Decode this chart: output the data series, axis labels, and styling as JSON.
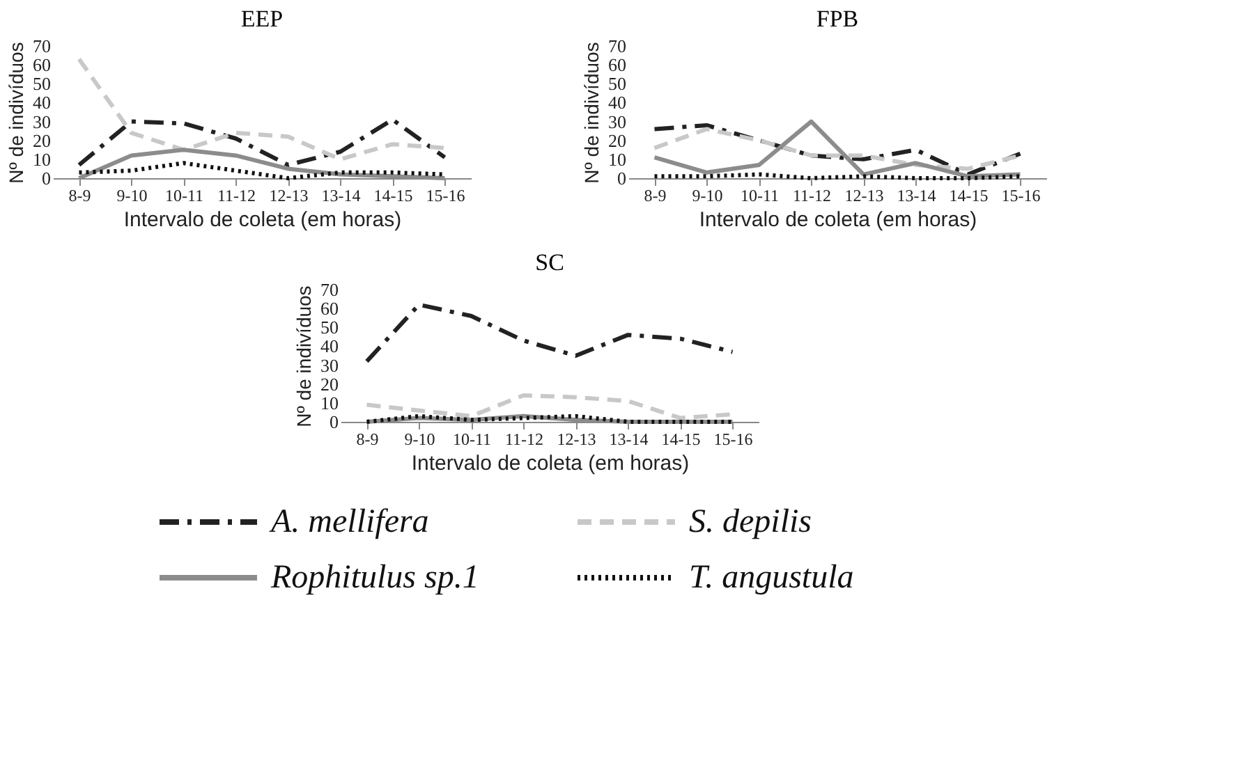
{
  "chart_data": [
    {
      "type": "line",
      "title": "EEP",
      "xlabel": "Intervalo  de coleta (em horas)",
      "ylabel": "Nº de indivíduos",
      "categories": [
        "8-9",
        "9-10",
        "10-11",
        "11-12",
        "12-13",
        "13-14",
        "14-15",
        "15-16"
      ],
      "ylim": [
        0,
        70
      ],
      "yticks": [
        0,
        10,
        20,
        30,
        40,
        50,
        60,
        70
      ],
      "grid": false,
      "series": [
        {
          "color": "#222222",
          "line_style": "dashdot",
          "values": [
            7,
            30,
            29,
            21,
            7,
            14,
            31,
            11
          ]
        },
        {
          "color": "#c8c8c8",
          "line_style": "dashed",
          "values": [
            63,
            24,
            15,
            24,
            22,
            10,
            18,
            16
          ]
        },
        {
          "color": "#8c8c8c",
          "line_style": "solid",
          "values": [
            0,
            12,
            15,
            12,
            5,
            2,
            1,
            0
          ]
        },
        {
          "color": "#111111",
          "line_style": "dotted",
          "values": [
            3,
            4,
            8,
            4,
            0,
            3,
            3,
            2
          ]
        }
      ]
    },
    {
      "type": "line",
      "title": "FPB",
      "xlabel": "Intervalo  de coleta (em horas)",
      "ylabel": "Nº de indivíduos",
      "categories": [
        "8-9",
        "9-10",
        "10-11",
        "11-12",
        "12-13",
        "13-14",
        "14-15",
        "15-16"
      ],
      "ylim": [
        0,
        70
      ],
      "yticks": [
        0,
        10,
        20,
        30,
        40,
        50,
        60,
        70
      ],
      "grid": false,
      "series": [
        {
          "color": "#222222",
          "line_style": "dashdot",
          "values": [
            26,
            28,
            20,
            12,
            10,
            15,
            2,
            13
          ]
        },
        {
          "color": "#c8c8c8",
          "line_style": "dashed",
          "values": [
            16,
            26,
            20,
            12,
            12,
            7,
            5,
            12
          ]
        },
        {
          "color": "#8c8c8c",
          "line_style": "solid",
          "values": [
            11,
            3,
            7,
            30,
            2,
            8,
            1,
            2
          ]
        },
        {
          "color": "#111111",
          "line_style": "dotted",
          "values": [
            1,
            1,
            2,
            0,
            1,
            0,
            0,
            1
          ]
        }
      ]
    },
    {
      "type": "line",
      "title": "SC",
      "xlabel": "Intervalo  de coleta (em horas)",
      "ylabel": "Nº de indivíduos",
      "categories": [
        "8-9",
        "9-10",
        "10-11",
        "11-12",
        "12-13",
        "13-14",
        "14-15",
        "15-16"
      ],
      "ylim": [
        0,
        70
      ],
      "yticks": [
        0,
        10,
        20,
        30,
        40,
        50,
        60,
        70
      ],
      "grid": false,
      "legend": "bottom",
      "series": [
        {
          "name": "A. mellifera",
          "color": "#222222",
          "line_style": "dashdot",
          "values": [
            32,
            62,
            56,
            43,
            35,
            46,
            44,
            37
          ]
        },
        {
          "name": "S. depilis",
          "color": "#c8c8c8",
          "line_style": "dashed",
          "values": [
            9,
            6,
            3,
            14,
            13,
            11,
            2,
            4
          ]
        },
        {
          "name": "Rophitulus sp.1",
          "color": "#8c8c8c",
          "line_style": "solid",
          "values": [
            0,
            2,
            1,
            3,
            1,
            0,
            0,
            0
          ]
        },
        {
          "name": "T. angustula",
          "color": "#111111",
          "line_style": "dotted",
          "values": [
            0,
            3,
            1,
            2,
            3,
            0,
            0,
            0
          ]
        }
      ]
    }
  ]
}
